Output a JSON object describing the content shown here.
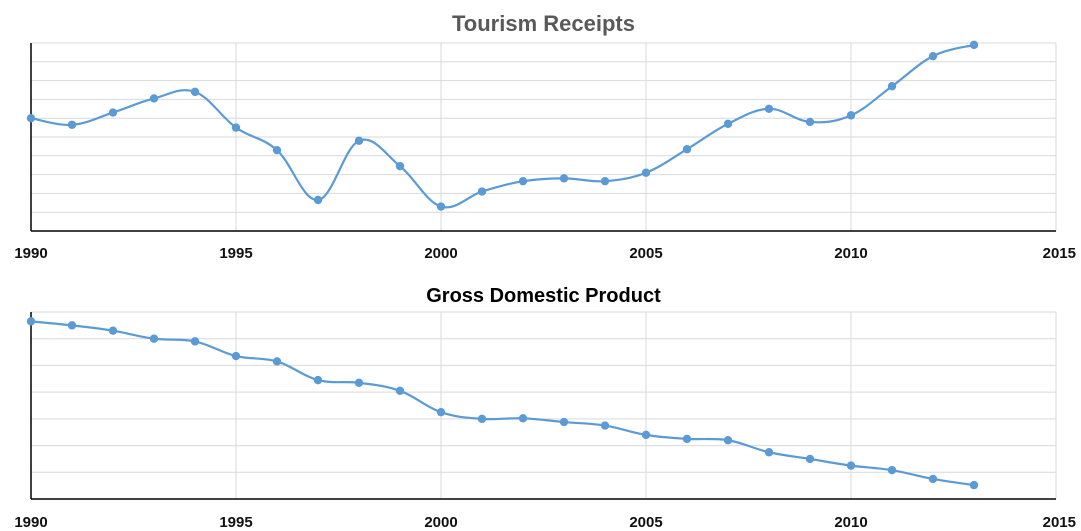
{
  "chart_data": [
    {
      "type": "line",
      "title": "Tourism Receipts",
      "xlabel": "",
      "ylabel": "",
      "x": [
        1990,
        1991,
        1992,
        1993,
        1994,
        1995,
        1996,
        1997,
        1998,
        1999,
        2000,
        2001,
        2002,
        2003,
        2004,
        2005,
        2006,
        2007,
        2008,
        2009,
        2010,
        2011,
        2012,
        2013
      ],
      "series": [
        {
          "values": [
            7.0,
            6.65,
            7.3,
            8.05,
            8.4,
            6.5,
            5.3,
            2.65,
            5.8,
            4.45,
            2.3,
            3.1,
            3.65,
            3.8,
            3.65,
            4.1,
            5.35,
            6.7,
            7.5,
            6.8,
            7.15,
            8.7,
            10.3,
            10.9
          ]
        }
      ],
      "xlim": [
        1990,
        2015
      ],
      "ylim": [
        1,
        11
      ],
      "xticks": [
        "1990",
        "1995",
        "2000",
        "2005",
        "2010",
        "2015"
      ],
      "show_y_tick_labels": false,
      "grid": true,
      "smooth": true,
      "color": "#5B9BD5",
      "title_color": "#595959"
    },
    {
      "type": "line",
      "title": "Gross Domestic Product",
      "xlabel": "",
      "ylabel": "",
      "x": [
        1990,
        1991,
        1992,
        1993,
        1994,
        1995,
        1996,
        1997,
        1998,
        1999,
        2000,
        2001,
        2002,
        2003,
        2004,
        2005,
        2006,
        2007,
        2008,
        2009,
        2010,
        2011,
        2012,
        2013
      ],
      "series": [
        {
          "values": [
            6.65,
            6.5,
            6.3,
            6.0,
            5.9,
            5.35,
            5.15,
            4.45,
            4.35,
            4.05,
            3.25,
            3.0,
            3.02,
            2.88,
            2.75,
            2.4,
            2.25,
            2.2,
            1.75,
            1.5,
            1.25,
            1.08,
            0.75,
            0.52
          ]
        }
      ],
      "xlim": [
        1990,
        2015
      ],
      "ylim": [
        0,
        7
      ],
      "xticks": [
        "1990",
        "1995",
        "2000",
        "2005",
        "2010",
        "2015"
      ],
      "show_y_tick_labels": false,
      "grid": true,
      "smooth": true,
      "color": "#5B9BD5",
      "title_color": "#000000"
    }
  ]
}
